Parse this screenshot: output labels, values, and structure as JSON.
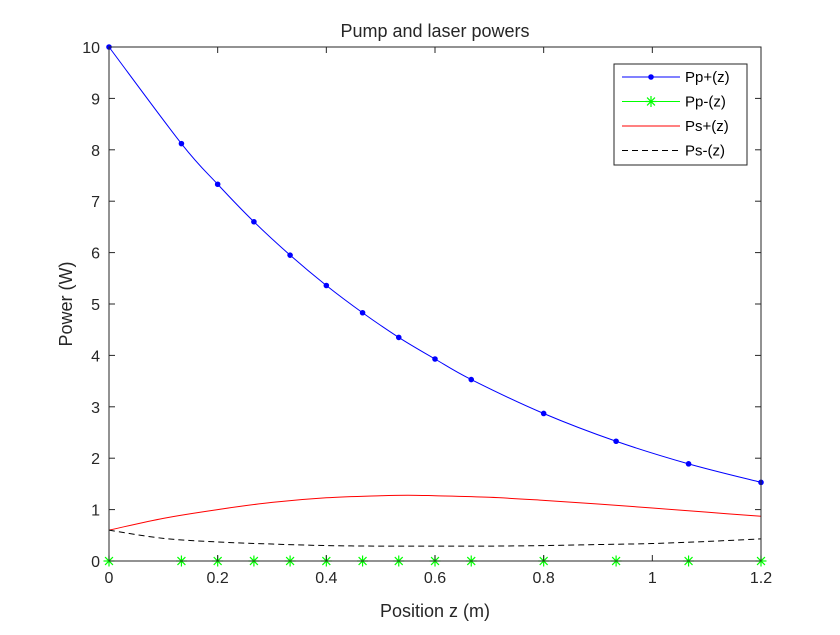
{
  "chart_data": {
    "type": "line",
    "title": "Pump and laser powers",
    "xlabel": "Position z (m)",
    "ylabel": "Power (W)",
    "xlim": [
      0,
      1.2
    ],
    "ylim": [
      0,
      10
    ],
    "grid": false,
    "legend_position": "top-right",
    "x_ticks": [
      0,
      0.2,
      0.4,
      0.6,
      0.8,
      1,
      1.2
    ],
    "x_tick_labels": [
      "0",
      "0.2",
      "0.4",
      "0.6",
      "0.8",
      "1",
      "1.2"
    ],
    "y_ticks": [
      0,
      1,
      2,
      3,
      4,
      5,
      6,
      7,
      8,
      9,
      10
    ],
    "y_tick_labels": [
      "0",
      "1",
      "2",
      "3",
      "4",
      "5",
      "6",
      "7",
      "8",
      "9",
      "10"
    ],
    "series": [
      {
        "name": "Pp+(z)",
        "color": "#0000ff",
        "line_style": "solid",
        "marker": "dot",
        "marker_x": [
          0,
          0.1333,
          0.2,
          0.2667,
          0.3333,
          0.4,
          0.4667,
          0.5333,
          0.6,
          0.6667,
          0.8,
          0.9333,
          1.0667,
          1.2
        ],
        "x": [
          0,
          0.1333,
          0.2,
          0.2667,
          0.3333,
          0.4,
          0.4667,
          0.5333,
          0.6,
          0.6667,
          0.8,
          0.9333,
          1.0667,
          1.2
        ],
        "values": [
          10.0,
          8.12,
          7.33,
          6.6,
          5.95,
          5.36,
          4.83,
          4.35,
          3.93,
          3.53,
          2.87,
          2.33,
          1.89,
          1.53
        ]
      },
      {
        "name": "Pp-(z)",
        "color": "#00ff00",
        "line_style": "solid",
        "marker": "asterisk",
        "marker_x": [
          0,
          0.1333,
          0.2,
          0.2667,
          0.3333,
          0.4,
          0.4667,
          0.5333,
          0.6,
          0.6667,
          0.8,
          0.9333,
          1.0667,
          1.2
        ],
        "x": [
          0,
          0.1333,
          0.2,
          0.2667,
          0.3333,
          0.4,
          0.4667,
          0.5333,
          0.6,
          0.6667,
          0.8,
          0.9333,
          1.0667,
          1.2
        ],
        "values": [
          0,
          0,
          0,
          0,
          0,
          0,
          0,
          0,
          0,
          0,
          0,
          0,
          0,
          0
        ]
      },
      {
        "name": "Ps+(z)",
        "color": "#ff0000",
        "line_style": "solid",
        "marker": "none",
        "marker_x": [],
        "x": [
          0,
          0.1,
          0.2,
          0.3,
          0.4,
          0.5,
          0.55,
          0.6,
          0.7,
          0.8,
          0.9,
          1.0,
          1.1,
          1.2
        ],
        "values": [
          0.6,
          0.83,
          1.0,
          1.14,
          1.23,
          1.27,
          1.28,
          1.27,
          1.24,
          1.18,
          1.11,
          1.03,
          0.95,
          0.87
        ]
      },
      {
        "name": "Ps-(z)",
        "color": "#000000",
        "line_style": "dashed",
        "marker": "none",
        "marker_x": [],
        "x": [
          0,
          0.1,
          0.2,
          0.3,
          0.4,
          0.5,
          0.6,
          0.7,
          0.8,
          0.9,
          1.0,
          1.1,
          1.2
        ],
        "values": [
          0.6,
          0.44,
          0.37,
          0.33,
          0.3,
          0.29,
          0.29,
          0.29,
          0.3,
          0.32,
          0.34,
          0.38,
          0.43
        ]
      }
    ]
  }
}
